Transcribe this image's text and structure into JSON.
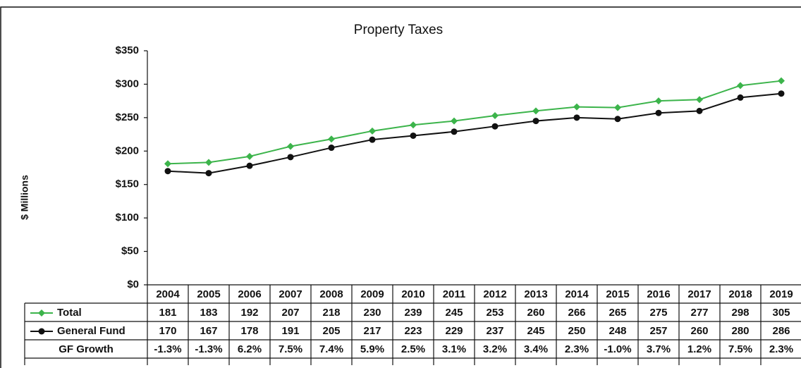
{
  "chart_data": {
    "type": "line",
    "title": "Property Taxes",
    "y_label": "$ Millions",
    "categories": [
      "2004",
      "2005",
      "2006",
      "2007",
      "2008",
      "2009",
      "2010",
      "2011",
      "2012",
      "2013",
      "2014",
      "2015",
      "2016",
      "2017",
      "2018",
      "2019"
    ],
    "series": [
      {
        "name": "Total",
        "color": "#3cb44b",
        "marker": "diamond",
        "values": [
          181,
          183,
          192,
          207,
          218,
          230,
          239,
          245,
          253,
          260,
          266,
          265,
          275,
          277,
          298,
          305
        ]
      },
      {
        "name": "General Fund",
        "color": "#111111",
        "marker": "circle",
        "values": [
          170,
          167,
          178,
          191,
          205,
          217,
          223,
          229,
          237,
          245,
          250,
          248,
          257,
          260,
          280,
          286
        ]
      }
    ],
    "growth": {
      "name": "GF Growth",
      "values": [
        -1.3,
        -1.3,
        6.2,
        7.5,
        7.4,
        5.9,
        2.5,
        3.1,
        3.2,
        3.4,
        2.3,
        -1.0,
        3.7,
        1.2,
        7.5,
        2.3
      ],
      "value_labels": [
        "-1.3%",
        "-1.3%",
        "6.2%",
        "7.5%",
        "7.4%",
        "5.9%",
        "2.5%",
        "3.1%",
        "3.2%",
        "3.4%",
        "2.3%",
        "-1.0%",
        "3.7%",
        "1.2%",
        "7.5%",
        "2.3%"
      ]
    },
    "ylim": [
      0,
      350
    ],
    "yticks": [
      {
        "value": 0,
        "label": "$0"
      },
      {
        "value": 50,
        "label": "$50"
      },
      {
        "value": 100,
        "label": "$100"
      },
      {
        "value": 150,
        "label": "$150"
      },
      {
        "value": 200,
        "label": "$200"
      },
      {
        "value": 250,
        "label": "$250"
      },
      {
        "value": 300,
        "label": "$300"
      },
      {
        "value": 350,
        "label": "$350"
      }
    ],
    "grid": false
  }
}
